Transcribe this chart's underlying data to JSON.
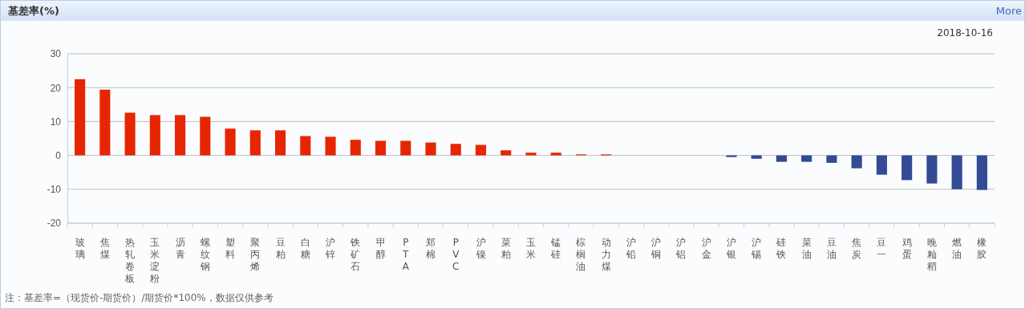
{
  "chart_data": {
    "type": "bar",
    "title": "基差率(%)",
    "categories": [
      "玻璃",
      "焦煤",
      "热轧卷板",
      "玉米淀粉",
      "沥青",
      "螺纹钢",
      "塑料",
      "聚丙烯",
      "豆粕",
      "白糖",
      "沪锌",
      "铁矿石",
      "甲醇",
      "PTA",
      "郑棉",
      "PVC",
      "沪镍",
      "菜粕",
      "玉米",
      "锰硅",
      "棕榈油",
      "动力煤",
      "沪铅",
      "沪铜",
      "沪铝",
      "沪金",
      "沪银",
      "沪锡",
      "硅铁",
      "菜油",
      "豆油",
      "焦炭",
      "豆一",
      "鸡蛋",
      "晚籼稻",
      "燃油",
      "橡胶"
    ],
    "values": [
      22.5,
      19.4,
      12.6,
      11.9,
      11.9,
      11.4,
      7.9,
      7.4,
      7.4,
      5.7,
      5.5,
      4.6,
      4.3,
      4.3,
      3.8,
      3.4,
      3.1,
      1.5,
      0.8,
      0.8,
      0.3,
      0.3,
      0,
      0,
      0,
      0,
      -0.5,
      -1.0,
      -1.9,
      -1.9,
      -2.2,
      -3.8,
      -5.7,
      -7.3,
      -8.3,
      -10.0,
      -10.2
    ],
    "colors": [
      "#e62600",
      "#e62600",
      "#e62600",
      "#e62600",
      "#e62600",
      "#e62600",
      "#e62600",
      "#e62600",
      "#e62600",
      "#e62600",
      "#e62600",
      "#e62600",
      "#e62600",
      "#e62600",
      "#e62600",
      "#e62600",
      "#e62600",
      "#e62600",
      "#e62600",
      "#e62600",
      "#e62600",
      "#e62600",
      "#e62600",
      "#e62600",
      "#e62600",
      "#e62600",
      "#334a94",
      "#334a94",
      "#334a94",
      "#334a94",
      "#334a94",
      "#334a94",
      "#334a94",
      "#334a94",
      "#334a94",
      "#334a94",
      "#334a94"
    ],
    "ylim": [
      -20,
      30
    ],
    "yticks": [
      -20,
      -10,
      0,
      10,
      20,
      30
    ],
    "grid": "y",
    "annotations": [
      "2018-10-16",
      "注：基差率=（现货价-期货价）/期货价*100%，数据仅供参考",
      "More"
    ]
  }
}
